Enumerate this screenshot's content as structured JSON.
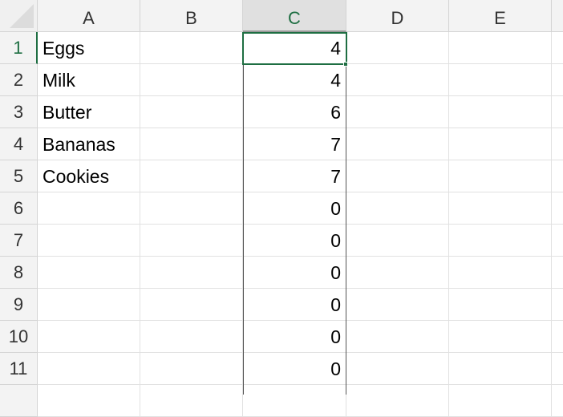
{
  "columns": [
    "A",
    "B",
    "C",
    "D",
    "E"
  ],
  "selected_cell": "C1",
  "accent_color": "#1e6e42",
  "rows": [
    {
      "n": "1",
      "a": "Eggs",
      "c": "4"
    },
    {
      "n": "2",
      "a": "Milk",
      "c": "4"
    },
    {
      "n": "3",
      "a": "Butter",
      "c": "6"
    },
    {
      "n": "4",
      "a": "Bananas",
      "c": "7"
    },
    {
      "n": "5",
      "a": "Cookies",
      "c": "7"
    },
    {
      "n": "6",
      "a": "",
      "c": "0"
    },
    {
      "n": "7",
      "a": "",
      "c": "0"
    },
    {
      "n": "8",
      "a": "",
      "c": "0"
    },
    {
      "n": "9",
      "a": "",
      "c": "0"
    },
    {
      "n": "10",
      "a": "",
      "c": "0"
    },
    {
      "n": "11",
      "a": "",
      "c": "0"
    },
    {
      "n": "",
      "a": "",
      "c": ""
    }
  ]
}
